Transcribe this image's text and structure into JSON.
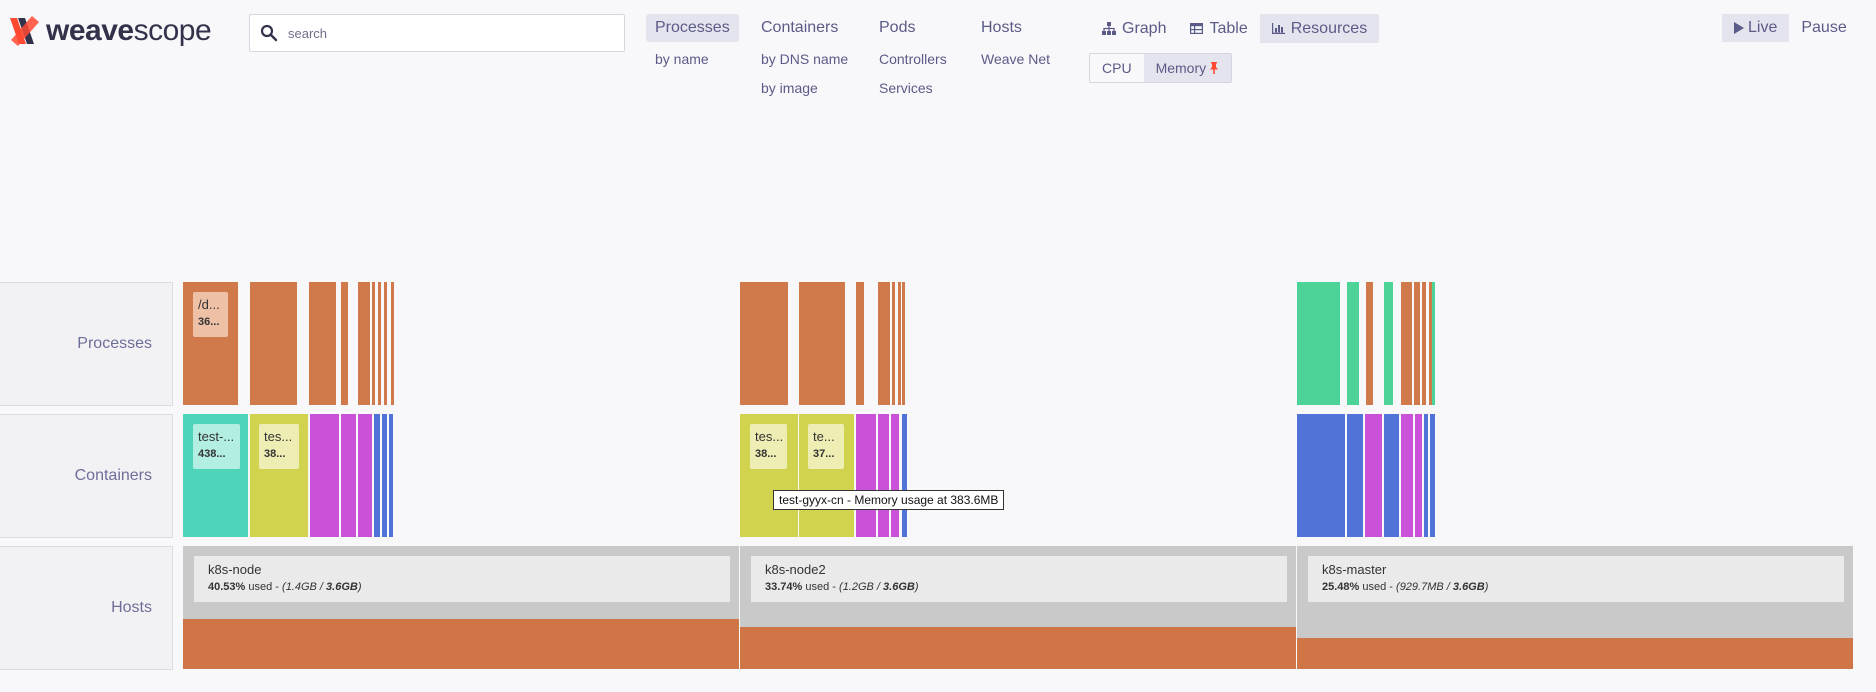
{
  "brand": {
    "part1": "weave",
    "part2": "scope"
  },
  "search": {
    "placeholder": "search"
  },
  "topologies": [
    {
      "label": "Processes",
      "active": true,
      "sub": [
        "by name"
      ]
    },
    {
      "label": "Containers",
      "active": false,
      "sub": [
        "by DNS name",
        "by image"
      ]
    },
    {
      "label": "Pods",
      "active": false,
      "sub": [
        "Controllers",
        "Services"
      ]
    },
    {
      "label": "Hosts",
      "active": false,
      "sub": [
        "Weave Net"
      ]
    }
  ],
  "view_modes": {
    "graph": "Graph",
    "table": "Table",
    "resources": "Resources"
  },
  "metrics": {
    "cpu": "CPU",
    "memory": "Memory"
  },
  "controls": {
    "live": "Live",
    "pause": "Pause"
  },
  "layers": {
    "processes": "Processes",
    "containers": "Containers",
    "hosts": "Hosts"
  },
  "node_labels": {
    "proc1": {
      "name": "/d...",
      "value": "36..."
    },
    "cont1": {
      "name": "test-...",
      "value": "438..."
    },
    "cont2": {
      "name": "tes...",
      "value": "38..."
    },
    "cont3": {
      "name": "tes...",
      "value": "38..."
    },
    "cont4": {
      "name": "te...",
      "value": "37..."
    }
  },
  "hosts": [
    {
      "name": "k8s-node",
      "percent": "40.53%",
      "used_word": "used -",
      "used": "1.4GB",
      "total": "3.6GB",
      "fraction": 0.4053
    },
    {
      "name": "k8s-node2",
      "percent": "33.74%",
      "used_word": "used -",
      "used": "1.2GB",
      "total": "3.6GB",
      "fraction": 0.3374
    },
    {
      "name": "k8s-master",
      "percent": "25.48%",
      "used_word": "used -",
      "used": "929.7MB",
      "total": "3.6GB",
      "fraction": 0.2548
    }
  ],
  "tooltip": "test-gyyx-cn - Memory usage at 383.6MB",
  "colors": {
    "process": "#d07a4c",
    "process_green": "#4dd298",
    "container_teal": "#4fd3b9",
    "container_yellow": "#d1d24e",
    "container_magenta": "#ca52d8",
    "container_blue": "#5172d6",
    "host_bar": "#d07546"
  }
}
